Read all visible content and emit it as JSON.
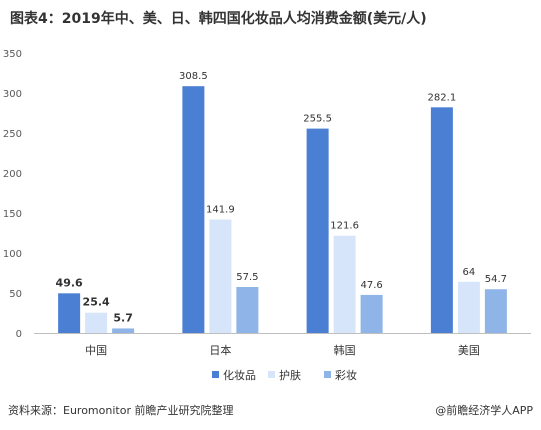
{
  "chart_data": {
    "type": "bar",
    "title": "图表4：2019年中、美、日、韩四国化妆品人均消费金额(美元/人)",
    "categories": [
      "中国",
      "日本",
      "韩国",
      "美国"
    ],
    "series": [
      {
        "name": "化妆品",
        "values": [
          49.6,
          308.5,
          255.5,
          282.1
        ],
        "color": "#4a7fd4"
      },
      {
        "name": "护肤",
        "values": [
          25.4,
          141.9,
          121.6,
          64
        ],
        "color": "#d6e5f9"
      },
      {
        "name": "彩妆",
        "values": [
          5.7,
          57.5,
          47.6,
          54.7
        ],
        "color": "#8fb4e8"
      }
    ],
    "ylim": [
      0,
      350
    ],
    "yticks": [
      0,
      50,
      100,
      150,
      200,
      250,
      300,
      350
    ],
    "xlabel": "",
    "ylabel": "",
    "legend_position": "bottom",
    "grid": false
  },
  "footer": {
    "source": "资料来源：Euromonitor 前瞻产业研究院整理",
    "brand": "@前瞻经济学人APP"
  }
}
